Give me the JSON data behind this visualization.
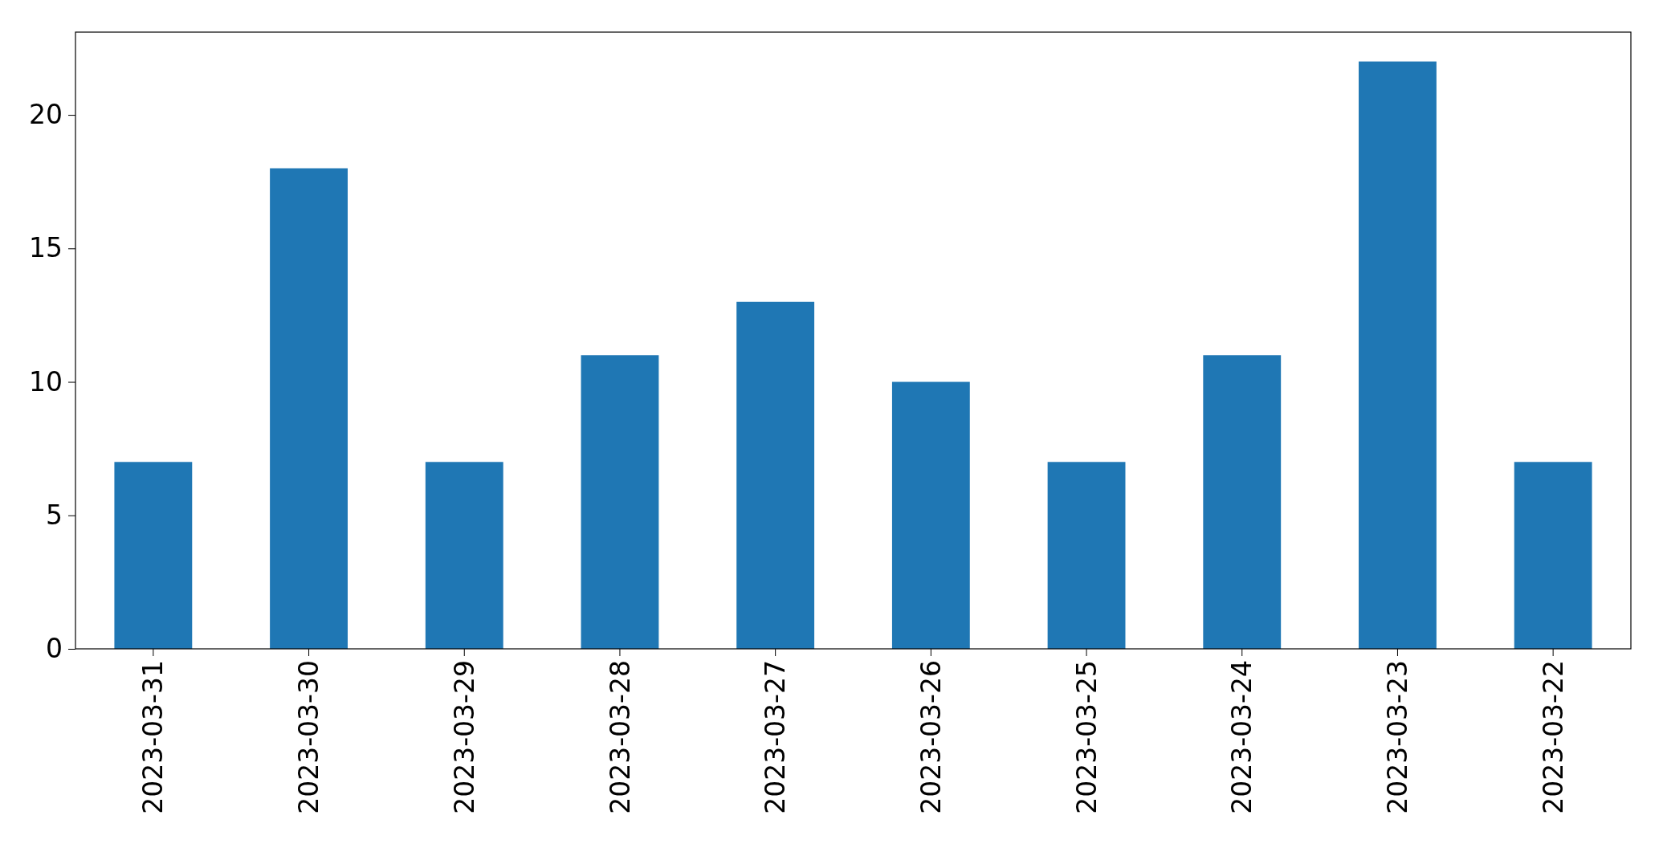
{
  "chart_data": {
    "type": "bar",
    "categories": [
      "2023-03-31",
      "2023-03-30",
      "2023-03-29",
      "2023-03-28",
      "2023-03-27",
      "2023-03-26",
      "2023-03-25",
      "2023-03-24",
      "2023-03-23",
      "2023-03-22"
    ],
    "values": [
      7,
      18,
      7,
      11,
      13,
      10,
      7,
      11,
      22,
      7
    ],
    "color": "#1f77b4",
    "ylim": [
      0,
      23.1
    ],
    "yticks": [
      0,
      5,
      10,
      15,
      20
    ],
    "grid": false
  }
}
